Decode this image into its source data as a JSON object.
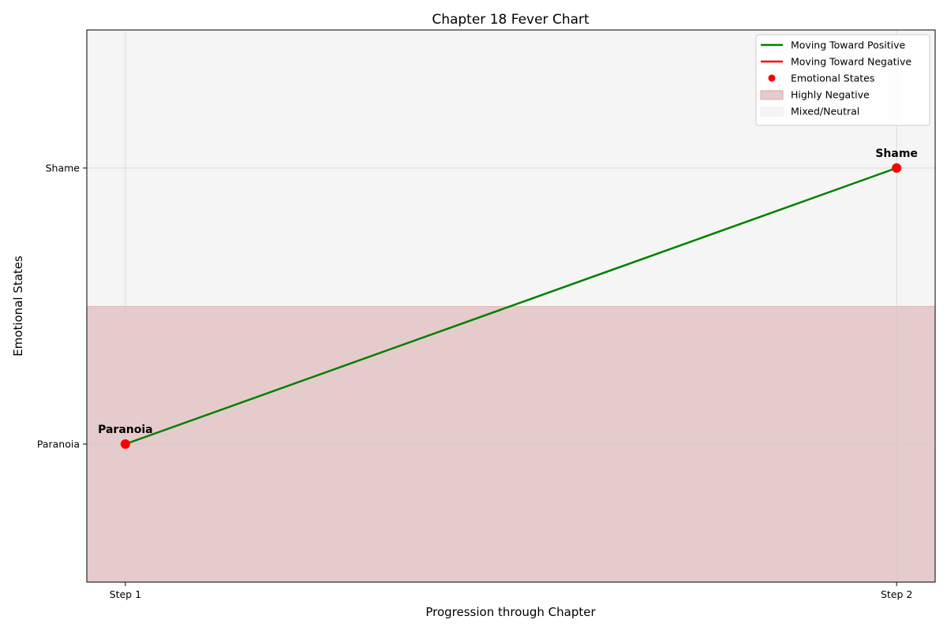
{
  "chart_data": {
    "type": "line",
    "title": "Chapter 18 Fever Chart",
    "xlabel": "Progression through Chapter",
    "ylabel": "Emotional States",
    "categories": [
      "Step 1",
      "Step 2"
    ],
    "y_tick_labels": [
      "Paranoia",
      "Shame"
    ],
    "y_tick_values": [
      0,
      1
    ],
    "ylim": [
      -0.5,
      1.5
    ],
    "xlim": [
      -0.05,
      1.05
    ],
    "points": [
      {
        "x": 0,
        "y": 0,
        "label": "Paranoia"
      },
      {
        "x": 1,
        "y": 1,
        "label": "Shame"
      }
    ],
    "segments": [
      {
        "from": 0,
        "to": 1,
        "direction": "positive"
      }
    ],
    "bands": [
      {
        "name": "Highly Negative",
        "y_from": -0.5,
        "y_to": 0.5,
        "color": "#e6cbcc"
      },
      {
        "name": "Mixed/Neutral",
        "y_from": 0.5,
        "y_to": 1.5,
        "color": "#f5f5f5"
      }
    ],
    "legend": {
      "placement": "top-right",
      "entries": [
        {
          "label": "Moving Toward Positive",
          "kind": "line",
          "color": "#008000"
        },
        {
          "label": "Moving Toward Negative",
          "kind": "line",
          "color": "#ff0000"
        },
        {
          "label": "Emotional States",
          "kind": "marker",
          "color": "#ff0000"
        },
        {
          "label": "Highly Negative",
          "kind": "patch",
          "color": "#e6cbcc"
        },
        {
          "label": "Mixed/Neutral",
          "kind": "patch",
          "color": "#f5f5f5"
        }
      ]
    },
    "grid": true,
    "colors": {
      "positive": "#008000",
      "negative": "#ff0000",
      "marker": "#ff0000"
    }
  }
}
